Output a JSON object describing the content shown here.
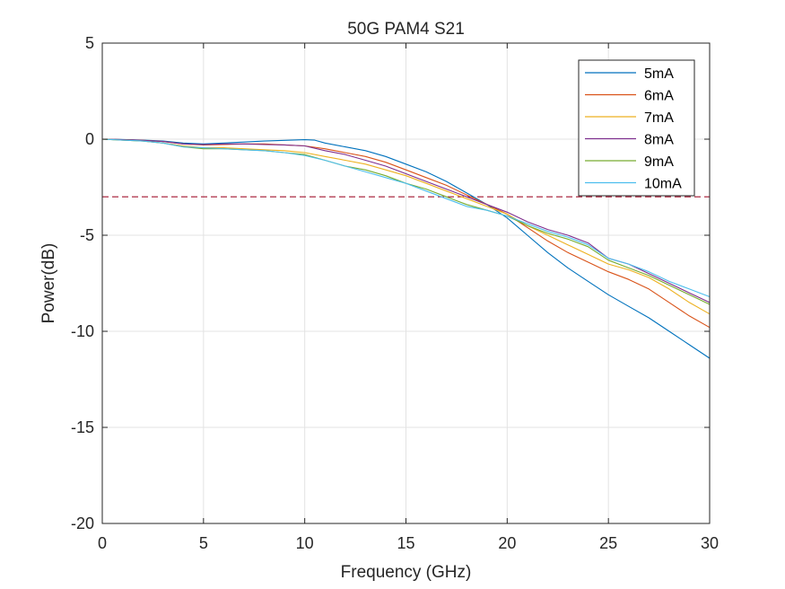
{
  "chart_data": {
    "type": "line",
    "title": "50G PAM4 S21",
    "xlabel": "Frequency (GHz)",
    "ylabel": "Power(dB)",
    "xlim": [
      0,
      30
    ],
    "ylim": [
      -20,
      5
    ],
    "xticks": [
      0,
      5,
      10,
      15,
      20,
      25,
      30
    ],
    "yticks": [
      5,
      0,
      -5,
      -10,
      -15,
      -20
    ],
    "grid": true,
    "legend_position": "top-right",
    "reference_line": {
      "y": -3,
      "style": "dashed",
      "color": "#A2142F"
    },
    "series": [
      {
        "name": "5mA",
        "color": "#0072BD",
        "x": [
          0,
          1,
          2,
          3,
          4,
          5,
          6,
          7,
          8,
          9,
          10,
          10.5,
          11,
          12,
          13,
          14,
          15,
          16,
          17,
          18,
          19,
          20,
          21,
          22,
          23,
          24,
          25,
          26,
          27,
          28,
          29,
          30
        ],
        "y": [
          0,
          -0.02,
          -0.05,
          -0.1,
          -0.2,
          -0.25,
          -0.2,
          -0.15,
          -0.1,
          -0.06,
          -0.03,
          -0.05,
          -0.2,
          -0.4,
          -0.6,
          -0.9,
          -1.3,
          -1.7,
          -2.2,
          -2.8,
          -3.4,
          -4.1,
          -5.0,
          -5.9,
          -6.7,
          -7.4,
          -8.1,
          -8.7,
          -9.3,
          -10.0,
          -10.7,
          -11.4
        ]
      },
      {
        "name": "6mA",
        "color": "#D95319",
        "x": [
          0,
          1,
          2,
          3,
          4,
          5,
          6,
          7,
          8,
          9,
          10,
          11,
          12,
          13,
          14,
          15,
          16,
          17,
          18,
          19,
          20,
          21,
          22,
          23,
          24,
          25,
          26,
          27,
          28,
          29,
          30
        ],
        "y": [
          0,
          -0.03,
          -0.06,
          -0.12,
          -0.25,
          -0.3,
          -0.28,
          -0.25,
          -0.25,
          -0.3,
          -0.35,
          -0.5,
          -0.7,
          -0.9,
          -1.2,
          -1.6,
          -2.0,
          -2.4,
          -2.9,
          -3.4,
          -3.9,
          -4.6,
          -5.3,
          -5.9,
          -6.4,
          -6.9,
          -7.3,
          -7.8,
          -8.5,
          -9.2,
          -9.8
        ]
      },
      {
        "name": "7mA",
        "color": "#EDB120",
        "x": [
          0,
          1,
          2,
          3,
          4,
          5,
          6,
          7,
          8,
          9,
          10,
          11,
          12,
          13,
          14,
          15,
          16,
          17,
          18,
          19,
          20,
          21,
          22,
          23,
          24,
          25,
          26,
          27,
          28,
          29,
          30
        ],
        "y": [
          0,
          -0.05,
          -0.1,
          -0.2,
          -0.35,
          -0.45,
          -0.45,
          -0.5,
          -0.55,
          -0.6,
          -0.7,
          -0.9,
          -1.1,
          -1.3,
          -1.6,
          -1.9,
          -2.3,
          -2.7,
          -3.1,
          -3.5,
          -3.9,
          -4.5,
          -5.0,
          -5.5,
          -6.0,
          -6.5,
          -6.8,
          -7.2,
          -7.8,
          -8.5,
          -9.1
        ]
      },
      {
        "name": "8mA",
        "color": "#7E2F8E",
        "x": [
          0,
          1,
          2,
          3,
          4,
          5,
          6,
          7,
          8,
          9,
          10,
          11,
          12,
          13,
          14,
          15,
          16,
          17,
          18,
          19,
          20,
          21,
          22,
          23,
          24,
          25,
          26,
          27,
          28,
          29,
          30
        ],
        "y": [
          0,
          -0.03,
          -0.06,
          -0.12,
          -0.25,
          -0.28,
          -0.25,
          -0.25,
          -0.28,
          -0.3,
          -0.35,
          -0.6,
          -0.8,
          -1.1,
          -1.4,
          -1.8,
          -2.2,
          -2.6,
          -3.0,
          -3.4,
          -3.8,
          -4.3,
          -4.7,
          -5.0,
          -5.4,
          -6.2,
          -6.5,
          -7.0,
          -7.5,
          -8.0,
          -8.5
        ]
      },
      {
        "name": "9mA",
        "color": "#77AC30",
        "x": [
          0,
          1,
          2,
          3,
          4,
          5,
          6,
          7,
          8,
          9,
          10,
          11,
          12,
          13,
          14,
          15,
          16,
          17,
          18,
          19,
          20,
          21,
          22,
          23,
          24,
          25,
          26,
          27,
          28,
          29,
          30
        ],
        "y": [
          0,
          -0.05,
          -0.1,
          -0.2,
          -0.4,
          -0.5,
          -0.5,
          -0.55,
          -0.6,
          -0.7,
          -0.8,
          -1.1,
          -1.4,
          -1.6,
          -1.9,
          -2.3,
          -2.6,
          -3.0,
          -3.4,
          -3.7,
          -4.0,
          -4.5,
          -4.9,
          -5.2,
          -5.6,
          -6.3,
          -6.7,
          -7.1,
          -7.6,
          -8.1,
          -8.6
        ]
      },
      {
        "name": "10mA",
        "color": "#4DBEEE",
        "x": [
          0,
          1,
          2,
          3,
          4,
          5,
          6,
          7,
          8,
          9,
          10,
          11,
          12,
          13,
          14,
          15,
          16,
          17,
          18,
          19,
          20,
          21,
          22,
          23,
          24,
          25,
          26,
          27,
          28,
          29,
          30
        ],
        "y": [
          0,
          -0.05,
          -0.1,
          -0.2,
          -0.4,
          -0.45,
          -0.5,
          -0.55,
          -0.6,
          -0.7,
          -0.85,
          -1.1,
          -1.4,
          -1.7,
          -2.0,
          -2.3,
          -2.7,
          -3.1,
          -3.5,
          -3.7,
          -4.0,
          -4.4,
          -4.8,
          -5.1,
          -5.5,
          -6.2,
          -6.5,
          -6.9,
          -7.4,
          -7.8,
          -8.2
        ]
      }
    ]
  }
}
